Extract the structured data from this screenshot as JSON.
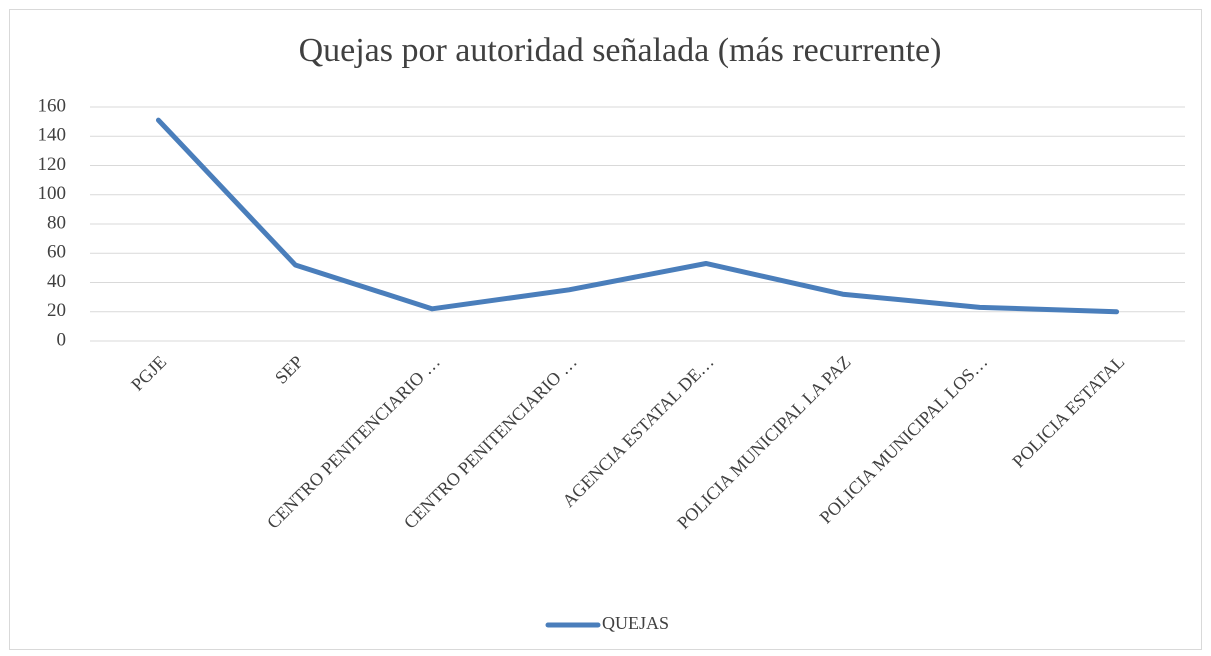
{
  "chart_data": {
    "type": "line",
    "title": "Quejas por autoridad señalada (más recurrente)",
    "categories": [
      "PGJE",
      "SEP",
      "CENTRO PENITENCIARIO …",
      "CENTRO PENITENCIARIO …",
      "AGENCIA ESTATAL DE…",
      "POLICIA MUNICIPAL LA PAZ",
      "POLICIA MUNICIPAL LOS…",
      "POLICIA ESTATAL"
    ],
    "series": [
      {
        "name": "QUEJAS",
        "color": "#4a7ebb",
        "values": [
          151,
          52,
          22,
          35,
          53,
          32,
          23,
          20
        ]
      }
    ],
    "ylim": [
      0,
      160
    ],
    "yticks": [
      0,
      20,
      40,
      60,
      80,
      100,
      120,
      140,
      160
    ],
    "grid": true,
    "legend": "bottom"
  }
}
